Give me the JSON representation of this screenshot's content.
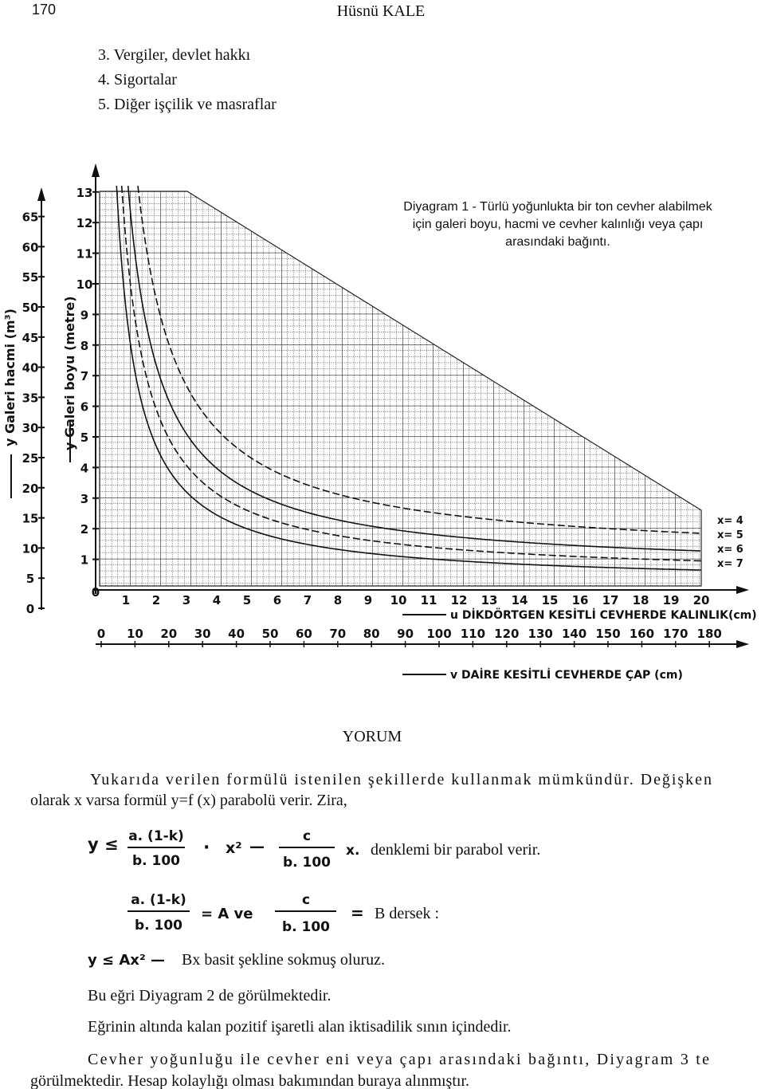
{
  "header": {
    "page_number": "170",
    "author": "Hüsnü KALE"
  },
  "list": [
    "3. Vergiler, devlet hakkı",
    "4. Sigortalar",
    "5. Diğer işçilik ve masraflar"
  ],
  "diagram": {
    "caption": [
      "Diyagram 1 - Türlü yoğunlukta bir ton cevher alabilmek",
      "için galeri boyu, hacmi ve cevher kalınlığı veya çapı",
      "arasındaki bağıntı."
    ],
    "y_volume_label": "y Galeri hacmi (m³)",
    "y_length_label": "y Galeri boyu (metre)",
    "volume_ticks": [
      0,
      5,
      10,
      15,
      20,
      25,
      30,
      35,
      40,
      45,
      50,
      55,
      60,
      65
    ],
    "length_ticks": [
      0,
      1,
      2,
      3,
      4,
      5,
      6,
      7,
      8,
      9,
      10,
      11,
      12,
      13
    ],
    "u_ticks": [
      0,
      1,
      2,
      3,
      4,
      5,
      6,
      7,
      8,
      9,
      10,
      11,
      12,
      13,
      14,
      15,
      16,
      17,
      18,
      19,
      20
    ],
    "u_label": "u DİKDÖRTGEN KESİTLİ CEVHERDE KALINLIK(cm)",
    "v_ticks": [
      0,
      10,
      20,
      30,
      40,
      50,
      60,
      70,
      80,
      90,
      100,
      110,
      120,
      130,
      140,
      150,
      160,
      170,
      180
    ],
    "v_label": "v DAİRE KESİTLİ CEVHERDE ÇAP (cm)",
    "curve_labels": [
      "x= 4",
      "x= 5",
      "x= 6",
      "x= 7"
    ]
  },
  "section_title": "YORUM",
  "paragraph_1": [
    "Yukarıda verilen formülü istenilen şekillerde kullanmak mümkündür. Değişken",
    "olarak x varsa formül y=f (x) parabolü verir. Zira,"
  ],
  "formula_1": {
    "lhs": "y ≤",
    "fraction_1": {
      "numerator": "a. (1-k)",
      "denominator": "b. 100"
    },
    "times": "·",
    "x_squared": "x²",
    "minus": "—",
    "fraction_2": {
      "numerator": "c",
      "denominator": "b. 100"
    },
    "x": "x.",
    "text": "denklemi bir parabol verir."
  },
  "formula_2": {
    "fraction_1": {
      "numerator": "a. (1-k)",
      "denominator": "b. 100"
    },
    "equals_a": "= A ve",
    "fraction_2": {
      "numerator": "c",
      "denominator": "b. 100"
    },
    "equals": "=",
    "text": "B dersek :"
  },
  "formula_3": {
    "lhs": "y ≤ Ax² —",
    "text": "Bx basit şekline sokmuş oluruz."
  },
  "sentences": [
    "Bu eğri Diyagram 2 de görülmektedir.",
    "Eğrinin altında kalan pozitif işaretli alan iktisadilik sının içindedir."
  ],
  "paragraph_2": [
    "Cevher yoğunluğu ile cevher eni veya çapı arasındaki bağıntı, Diyagram 3 te",
    "görülmektedir. Hesap kolaylığı olması bakımından buraya alınmıştır."
  ]
}
